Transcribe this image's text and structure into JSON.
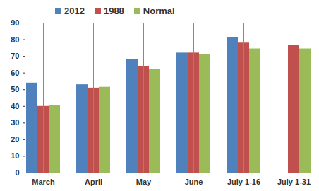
{
  "chart_data": {
    "type": "bar",
    "categories": [
      "March",
      "April",
      "May",
      "June",
      "July 1-16",
      "July 1-31"
    ],
    "series": [
      {
        "name": "2012",
        "color": "#4F81BD",
        "values": [
          54,
          53,
          68,
          72,
          81.5,
          null
        ]
      },
      {
        "name": "1988",
        "color": "#C0504D",
        "values": [
          40,
          51,
          64,
          72,
          78,
          76.5
        ]
      },
      {
        "name": "Normal",
        "color": "#9BBB59",
        "values": [
          40.5,
          51.5,
          62,
          71,
          74.5,
          74.5
        ]
      }
    ],
    "ylim": [
      0,
      90
    ],
    "yticks": [
      0,
      10,
      20,
      30,
      40,
      50,
      60,
      70,
      80,
      90
    ],
    "grid": false,
    "legend": "top"
  }
}
